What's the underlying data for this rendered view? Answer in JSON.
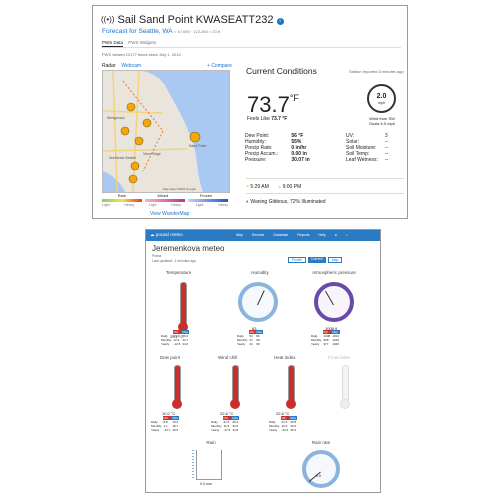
{
  "top": {
    "title": "Sail Sand Point KWASEATT232",
    "subtitle": "Forecast for Seattle, WA",
    "coords": "> 47.690 · 122.265 > 23 ft",
    "tabs": [
      "PWS Data",
      "PWS Widgets"
    ],
    "viewed": "PWS viewed 12177 times since July 1, 2014",
    "map_tabs": [
      "Radar",
      "Webcam"
    ],
    "compare": "Compare",
    "map_places": [
      "Wedgwood",
      "Northeast Seattle",
      "View Ridge",
      "Sand Point"
    ],
    "map_credit": "Map data ©2015 Google",
    "legend": {
      "rain": "Rain",
      "mixed": "Mixed",
      "frozen": "Frozen",
      "light": "Light",
      "heavy": "Heavy"
    },
    "view_link": "View WunderMap",
    "current": {
      "heading": "Current Conditions",
      "reported": "Station reported 5 minutes ago",
      "temp": "73.7",
      "unit": "°F",
      "feels_label": "Feels Like",
      "feels": "73.7 °F",
      "wind_speed": "2.0",
      "wind_unit": "mph",
      "wind_from": "Wind from SW",
      "gusts": "Gusts 6.0 mph",
      "left": [
        {
          "label": "Dew Point:",
          "value": "56 °F"
        },
        {
          "label": "Humidity:",
          "value": "55%"
        },
        {
          "label": "Precip Rate:",
          "value": "0 in/hr"
        },
        {
          "label": "Precip Accum.:",
          "value": "0.00 in"
        },
        {
          "label": "Pressure:",
          "value": "30.07 in"
        }
      ],
      "right": [
        {
          "label": "UV:",
          "value": "3"
        },
        {
          "label": "Solar:",
          "value": "--"
        },
        {
          "label": "Soil Moisture:",
          "value": "--"
        },
        {
          "label": "Soil Temp:",
          "value": "--"
        },
        {
          "label": "Leaf Wetness:",
          "value": "--"
        }
      ],
      "sunrise": "5:29 AM",
      "sunset": "9:00 PM",
      "moon": "Waning Gibbous, 72% Illuminated"
    }
  },
  "bottom": {
    "brand": "pocasí meteo",
    "nav": [
      "Map",
      "Devices",
      "Database",
      "Reports",
      "Help"
    ],
    "station": "Jeremenkova meteo",
    "region": "Praha",
    "updated": "Last updated: 1 minutes ago",
    "view_tabs": [
      "Profile",
      "Current",
      "Map"
    ],
    "panels": [
      {
        "title": "Temperature",
        "value": "25.1 °C"
      },
      {
        "title": "Humidity",
        "value": "63"
      },
      {
        "title": "Atmospheric pressure",
        "value": "1008.9"
      },
      {
        "title": "Dew point",
        "value": "10.0 °C"
      },
      {
        "title": "Wind chill",
        "value": "22.8 °C"
      },
      {
        "title": "Heat index",
        "value": "22.8 °C"
      },
      {
        "title": "Frost index",
        "value": ""
      },
      {
        "title": "Rain",
        "value": "0.0  mm"
      },
      {
        "title": "Rain rate",
        "value": "0.0"
      }
    ],
    "stat_rows": [
      "Daily",
      "Monthly",
      "Yearly"
    ],
    "stat_cols": [
      "Min",
      "Max"
    ],
    "stats": {
      "temperature": [
        [
          "21.6",
          "26.6"
        ],
        [
          "12.6",
          "32.7"
        ],
        [
          "-12.6",
          "34.6"
        ]
      ],
      "humidity": [
        [
          "52",
          "81"
        ],
        [
          "27",
          "99"
        ],
        [
          "21",
          "99"
        ]
      ],
      "pressure": [
        [
          "1008",
          "1010"
        ],
        [
          "998",
          "1018"
        ],
        [
          "977",
          "1040"
        ]
      ],
      "dewpoint": [
        [
          "8.8",
          "15.4"
        ],
        [
          "1.1",
          "18.7"
        ],
        [
          "-14.7",
          "19.5"
        ]
      ],
      "windchill": [
        [
          "21.6",
          "25.2"
        ],
        [
          "11.9",
          "32.5"
        ],
        [
          "-17.5",
          "34.8"
        ]
      ],
      "heatindex": [
        [
          "21.6",
          "25.8"
        ],
        [
          "12.6",
          "33.0"
        ],
        [
          "-12.6",
          "35.2"
        ]
      ]
    }
  }
}
